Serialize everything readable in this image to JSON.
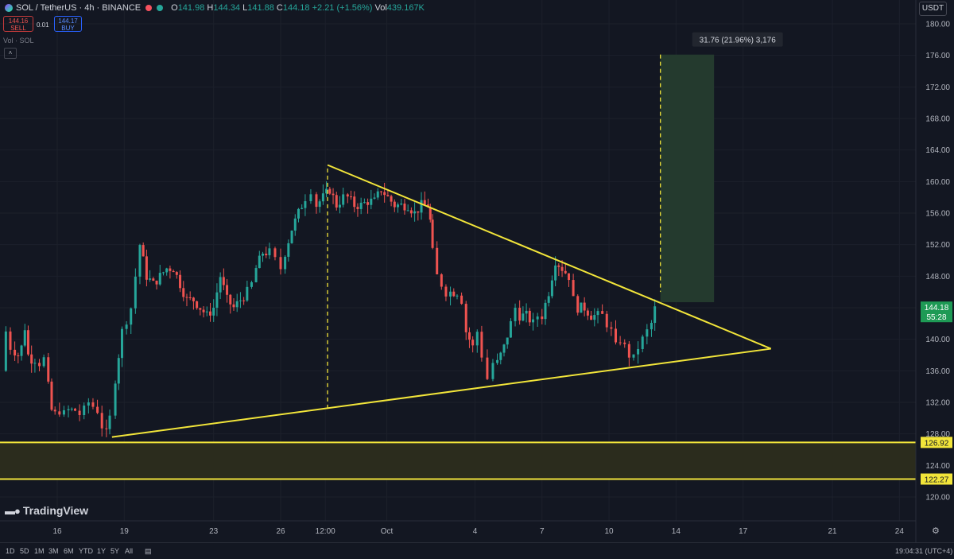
{
  "header": {
    "symbol": "SOL / TetherUS · 4h · BINANCE",
    "open_label": "O",
    "open": "141.98",
    "high_label": "H",
    "high": "144.34",
    "low_label": "L",
    "low": "141.88",
    "close_label": "C",
    "close": "144.18",
    "change": "+2.21 (+1.56%)",
    "vol_label": "Vol",
    "vol": "439.167K",
    "sell_price": "144.16",
    "sell_label": "SELL",
    "buy_price": "144.17",
    "buy_label": "BUY",
    "spread": "0.01",
    "volume_indicator": "Vol · SOL",
    "currency": "USDT"
  },
  "logo": "TradingView",
  "bottom_bar": {
    "ranges": [
      "1D",
      "5D",
      "1M",
      "3M",
      "6M",
      "YTD",
      "1Y",
      "5Y",
      "All"
    ],
    "clock": "19:04:31 (UTC+4)"
  },
  "colors": {
    "up": "#26a69a",
    "down": "#ef5350",
    "pattern": "#f2e53a",
    "target_zone": "#243a2e",
    "support_zone": "#2b2c1d"
  },
  "chart_data": {
    "type": "candlestick",
    "ylim": [
      118,
      182
    ],
    "y_ticks": [
      120,
      124,
      128,
      132,
      136,
      140,
      144,
      148,
      152,
      156,
      160,
      164,
      168,
      172,
      176,
      180
    ],
    "x_ticks": [
      {
        "day": 16,
        "label": "16"
      },
      {
        "day": 19,
        "label": "19"
      },
      {
        "day": 23,
        "label": "23"
      },
      {
        "day": 26,
        "label": "26"
      },
      {
        "day": 28,
        "label": "12:00"
      },
      {
        "day": 30.75,
        "label": "Oct"
      },
      {
        "day": 34.7,
        "label": "4"
      },
      {
        "day": 37.7,
        "label": "7"
      },
      {
        "day": 40.7,
        "label": "10"
      },
      {
        "day": 43.7,
        "label": "14"
      },
      {
        "day": 46.7,
        "label": "17"
      },
      {
        "day": 50.7,
        "label": "21"
      },
      {
        "day": 53.7,
        "label": "24"
      }
    ],
    "day_range": [
      13.5,
      56.5
    ],
    "last_price": "144.18",
    "countdown": "55:28",
    "last_value": 144.18,
    "candle_anchors": [
      [
        13.5,
        136
      ],
      [
        13.7,
        141
      ],
      [
        13.9,
        139
      ],
      [
        14.1,
        138.5
      ],
      [
        14.25,
        138
      ],
      [
        14.4,
        139
      ],
      [
        14.55,
        141.5
      ],
      [
        14.7,
        138
      ],
      [
        14.85,
        137.5
      ],
      [
        15.0,
        137.5
      ],
      [
        15.2,
        137
      ],
      [
        15.4,
        137.5
      ],
      [
        15.6,
        134
      ],
      [
        15.75,
        131
      ],
      [
        15.9,
        130.5
      ],
      [
        16.1,
        131
      ],
      [
        16.3,
        130.5
      ],
      [
        16.5,
        131
      ],
      [
        16.65,
        131
      ],
      [
        16.8,
        131
      ],
      [
        17.0,
        130.5
      ],
      [
        17.2,
        131
      ],
      [
        17.4,
        132
      ],
      [
        17.6,
        131.5
      ],
      [
        17.8,
        131
      ],
      [
        18.0,
        129
      ],
      [
        18.2,
        128
      ],
      [
        18.35,
        130
      ],
      [
        18.6,
        135
      ],
      [
        18.9,
        141
      ],
      [
        19.3,
        144
      ],
      [
        19.7,
        152
      ],
      [
        20.0,
        148
      ],
      [
        20.3,
        147
      ],
      [
        20.6,
        148
      ],
      [
        20.9,
        149
      ],
      [
        21.2,
        149
      ],
      [
        21.5,
        147
      ],
      [
        21.8,
        145
      ],
      [
        22.1,
        145
      ],
      [
        22.4,
        144
      ],
      [
        22.7,
        143
      ],
      [
        23.0,
        144
      ],
      [
        23.3,
        148
      ],
      [
        23.6,
        145
      ],
      [
        23.9,
        144
      ],
      [
        24.2,
        145
      ],
      [
        24.5,
        146
      ],
      [
        24.7,
        147
      ],
      [
        24.9,
        149
      ],
      [
        25.2,
        151
      ],
      [
        25.5,
        151
      ],
      [
        25.75,
        150
      ],
      [
        26.0,
        149
      ],
      [
        26.2,
        151
      ],
      [
        26.5,
        154
      ],
      [
        26.8,
        156
      ],
      [
        27.1,
        158
      ],
      [
        27.35,
        159
      ],
      [
        27.6,
        157
      ],
      [
        27.9,
        158
      ],
      [
        28.2,
        159
      ],
      [
        28.5,
        157
      ],
      [
        28.8,
        158
      ],
      [
        29.0,
        158
      ],
      [
        29.3,
        157
      ],
      [
        29.6,
        157
      ],
      [
        29.9,
        157.5
      ],
      [
        30.2,
        157.5
      ],
      [
        30.5,
        159
      ],
      [
        30.8,
        158
      ],
      [
        31.1,
        157
      ],
      [
        31.4,
        157
      ],
      [
        31.7,
        157
      ],
      [
        32.0,
        156
      ],
      [
        32.3,
        157
      ],
      [
        32.6,
        157
      ],
      [
        32.7,
        155
      ],
      [
        32.8,
        151
      ],
      [
        33.0,
        148
      ],
      [
        33.2,
        147
      ],
      [
        33.4,
        146
      ],
      [
        33.6,
        146
      ],
      [
        33.9,
        146
      ],
      [
        34.1,
        145
      ],
      [
        34.3,
        141
      ],
      [
        34.6,
        139
      ],
      [
        34.8,
        141
      ],
      [
        35.0,
        138
      ],
      [
        35.25,
        135
      ],
      [
        35.5,
        137
      ],
      [
        35.7,
        137
      ],
      [
        36.0,
        139
      ],
      [
        36.3,
        142
      ],
      [
        36.5,
        144
      ],
      [
        36.7,
        143
      ],
      [
        37.0,
        143
      ],
      [
        37.3,
        142
      ],
      [
        37.5,
        143
      ],
      [
        37.7,
        143
      ],
      [
        38.0,
        146
      ],
      [
        38.3,
        150
      ],
      [
        38.6,
        149
      ],
      [
        38.9,
        148
      ],
      [
        39.1,
        145
      ],
      [
        39.3,
        144
      ],
      [
        39.6,
        144
      ],
      [
        39.9,
        143
      ],
      [
        40.2,
        143
      ],
      [
        40.4,
        143
      ],
      [
        40.6,
        142
      ],
      [
        40.8,
        141
      ],
      [
        41.0,
        139
      ],
      [
        41.2,
        140
      ],
      [
        41.4,
        139
      ],
      [
        41.6,
        138
      ],
      [
        41.8,
        137.5
      ],
      [
        42.0,
        139
      ],
      [
        42.2,
        140
      ],
      [
        42.4,
        141
      ],
      [
        42.6,
        142
      ],
      [
        42.75,
        144.18
      ]
    ],
    "trendlines": [
      {
        "name": "upper",
        "from": [
          28.1,
          162.1
        ],
        "to": [
          47.95,
          138.8
        ]
      },
      {
        "name": "lower",
        "from": [
          18.45,
          127.6
        ],
        "to": [
          47.95,
          138.8
        ]
      },
      {
        "name": "dashed-low",
        "from": [
          28.1,
          131.2
        ],
        "to": [
          28.1,
          162
        ]
      },
      {
        "name": "dashed-high",
        "from": [
          43.0,
          176.1
        ],
        "to": [
          43.0,
          146
        ]
      }
    ],
    "zones": [
      {
        "name": "target-zone",
        "x_from": 43.0,
        "x_to": 45.4,
        "y_from": 144.7,
        "y_to": 176.1
      },
      {
        "name": "support-zone",
        "y_from": 122.27,
        "y_to": 126.92
      }
    ],
    "horizontal_levels": [
      {
        "value": 126.92,
        "label": "126.92"
      },
      {
        "value": 122.27,
        "label": "122.27"
      }
    ],
    "measure_label": "31.76 (21.96%) 3,176"
  }
}
